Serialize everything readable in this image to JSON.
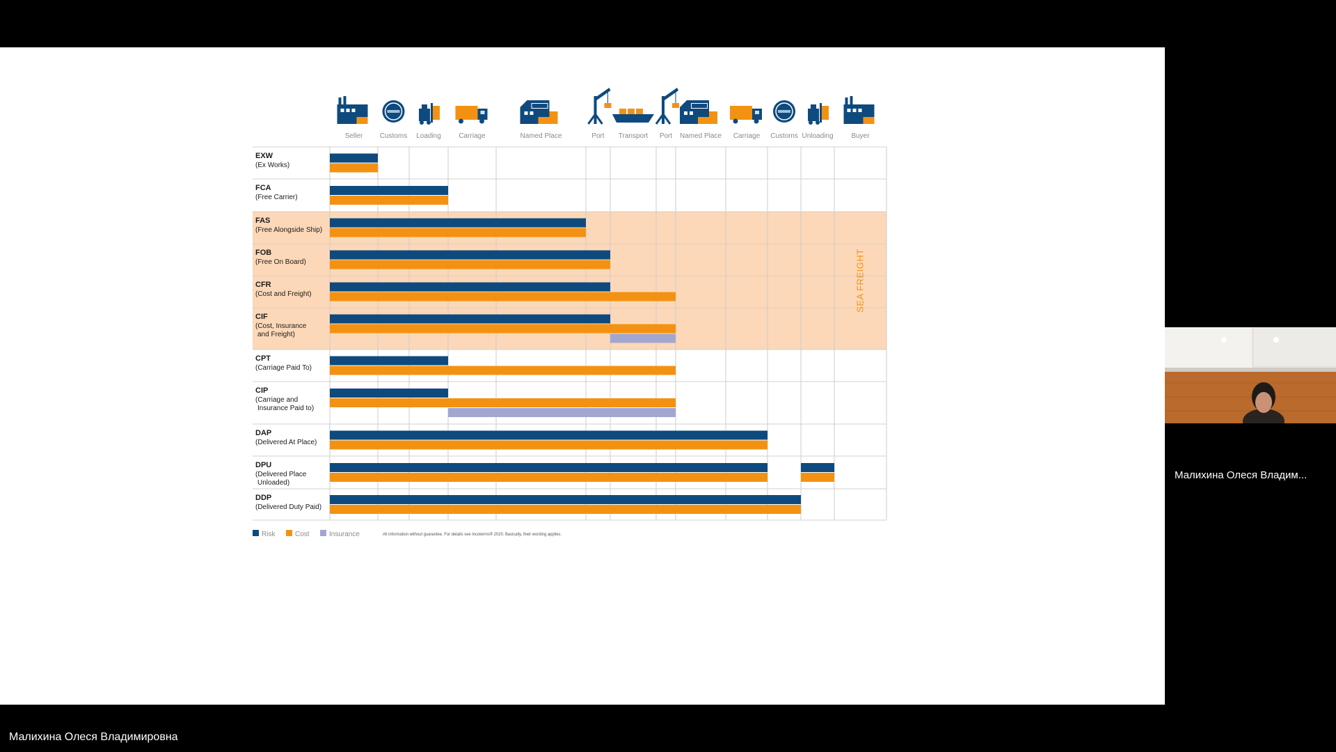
{
  "presenter": {
    "name": "Малихина Олеся Владимировна"
  },
  "participant": {
    "name": "Малихина Олеся Владим..."
  },
  "slide": {
    "colors": {
      "risk": "#0e4a7e",
      "cost": "#f39212",
      "insurance": "#a3a7cf",
      "sea_band": "#fcd8b8"
    },
    "stages": [
      "Seller",
      "Customs",
      "Loading",
      "Carriage",
      "Named Place",
      "Port",
      "Transport",
      "Port",
      "Named Place",
      "Carriage",
      "Customs",
      "Unloading",
      "Buyer"
    ],
    "stage_icons": [
      "factory-icon",
      "customs-seal-icon",
      "forklift-icon",
      "truck-icon",
      "cargo-warehouse-icon",
      "port-crane-icon",
      "cargo-ship-icon",
      "port-crane-icon",
      "cargo-warehouse-icon",
      "truck-icon",
      "customs-seal-icon",
      "forklift-icon",
      "factory-icon"
    ],
    "sea_freight_label": "SEA FREIGHT",
    "terms": [
      {
        "code": "EXW",
        "desc": [
          "(Ex Works)"
        ],
        "sea": false,
        "risk": [
          [
            0,
            1
          ]
        ],
        "cost": [
          [
            0,
            1
          ]
        ],
        "insurance": []
      },
      {
        "code": "FCA",
        "desc": [
          "(Free Carrier)"
        ],
        "sea": false,
        "risk": [
          [
            0,
            3
          ]
        ],
        "cost": [
          [
            0,
            3
          ]
        ],
        "insurance": []
      },
      {
        "code": "FAS",
        "desc": [
          "(Free Alongside Ship)"
        ],
        "sea": true,
        "risk": [
          [
            0,
            5
          ]
        ],
        "cost": [
          [
            0,
            5
          ]
        ],
        "insurance": []
      },
      {
        "code": "FOB",
        "desc": [
          "(Free On Board)"
        ],
        "sea": true,
        "risk": [
          [
            0,
            6
          ]
        ],
        "cost": [
          [
            0,
            6
          ]
        ],
        "insurance": []
      },
      {
        "code": "CFR",
        "desc": [
          "(Cost and Freight)"
        ],
        "sea": true,
        "risk": [
          [
            0,
            6
          ]
        ],
        "cost": [
          [
            0,
            8
          ]
        ],
        "insurance": []
      },
      {
        "code": "CIF",
        "desc": [
          "(Cost, Insurance",
          "and Freight)"
        ],
        "sea": true,
        "risk": [
          [
            0,
            6
          ]
        ],
        "cost": [
          [
            0,
            8
          ]
        ],
        "insurance": [
          [
            6,
            8
          ]
        ]
      },
      {
        "code": "CPT",
        "desc": [
          "(Carriage Paid To)"
        ],
        "sea": false,
        "risk": [
          [
            0,
            3
          ]
        ],
        "cost": [
          [
            0,
            8
          ]
        ],
        "insurance": []
      },
      {
        "code": "CIP",
        "desc": [
          "(Carriage and",
          "Insurance Paid to)"
        ],
        "sea": false,
        "risk": [
          [
            0,
            3
          ]
        ],
        "cost": [
          [
            0,
            8
          ]
        ],
        "insurance": [
          [
            3,
            8
          ]
        ]
      },
      {
        "code": "DAP",
        "desc": [
          "(Delivered At Place)"
        ],
        "sea": false,
        "risk": [
          [
            0,
            10
          ]
        ],
        "cost": [
          [
            0,
            10
          ]
        ],
        "insurance": []
      },
      {
        "code": "DPU",
        "desc": [
          "(Delivered Place",
          "Unloaded)"
        ],
        "sea": false,
        "risk": [
          [
            0,
            10
          ],
          [
            11,
            12
          ]
        ],
        "cost": [
          [
            0,
            10
          ],
          [
            11,
            12
          ]
        ],
        "insurance": []
      },
      {
        "code": "DDP",
        "desc": [
          "(Delivered Duty Paid)"
        ],
        "sea": false,
        "risk": [
          [
            0,
            11
          ]
        ],
        "cost": [
          [
            0,
            11
          ]
        ],
        "insurance": []
      }
    ],
    "legend": [
      {
        "label": "Risk",
        "color": "#0e4a7e"
      },
      {
        "label": "Cost",
        "color": "#f39212"
      },
      {
        "label": "Insurance",
        "color": "#a3a7cf"
      }
    ],
    "footnote": "All information without guarantee. For details see Incoterms® 2020. Basically, their wording applies."
  }
}
